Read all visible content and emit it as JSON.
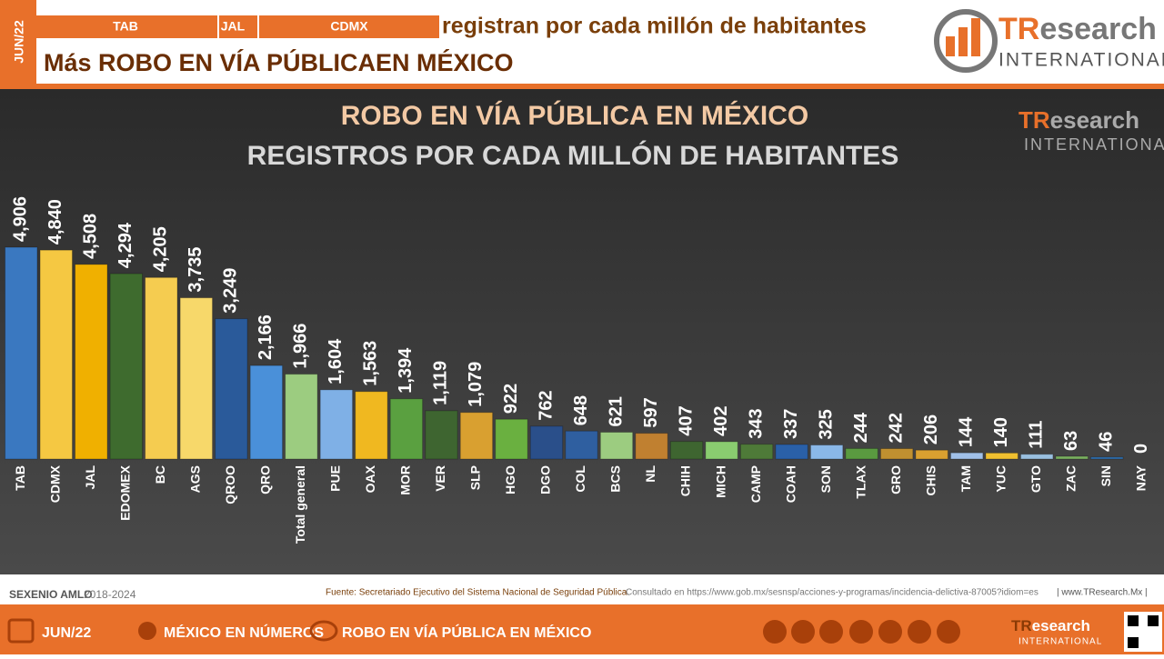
{
  "header": {
    "date": "JUN/22",
    "tabs": [
      "TAB",
      "JAL",
      "CDMX"
    ],
    "subtitle": "registran por cada millón de habitantes",
    "title": "Más ROBO EN VÍA PÚBLICAEN MÉXICO"
  },
  "logo": {
    "prefix": "TR",
    "suffix": "esearch",
    "tagline": "INTERNATIONAL"
  },
  "chart_data": {
    "type": "bar",
    "title": "ROBO EN VÍA PÚBLICA EN MÉXICO",
    "subtitle": "REGISTROS POR CADA MILLÓN DE HABITANTES",
    "categories": [
      "TAB",
      "CDMX",
      "JAL",
      "EDOMEX",
      "BC",
      "AGS",
      "QROO",
      "QRO",
      "Total general",
      "PUE",
      "OAX",
      "MOR",
      "VER",
      "SLP",
      "HGO",
      "DGO",
      "COL",
      "BCS",
      "NL",
      "CHIH",
      "MICH",
      "CAMP",
      "COAH",
      "SON",
      "TLAX",
      "GRO",
      "CHIS",
      "TAM",
      "YUC",
      "GTO",
      "ZAC",
      "SIN",
      "NAY"
    ],
    "values": [
      4906,
      4840,
      4508,
      4294,
      4205,
      3735,
      3249,
      2166,
      1966,
      1604,
      1563,
      1394,
      1119,
      1079,
      922,
      762,
      648,
      621,
      597,
      407,
      402,
      343,
      337,
      325,
      244,
      242,
      206,
      144,
      140,
      111,
      63,
      46,
      0
    ],
    "value_labels": [
      "4,906",
      "4,840",
      "4,508",
      "4,294",
      "4,205",
      "3,735",
      "3,249",
      "2,166",
      "1,966",
      "1,604",
      "1,563",
      "1,394",
      "1,119",
      "1,079",
      "922",
      "762",
      "648",
      "621",
      "597",
      "407",
      "402",
      "343",
      "337",
      "325",
      "244",
      "242",
      "206",
      "144",
      "140",
      "111",
      "63",
      "46",
      "0"
    ],
    "colors": [
      "#3a78c0",
      "#f5c842",
      "#f0b000",
      "#3e6b2e",
      "#f5cc50",
      "#f7d86a",
      "#2a5a9a",
      "#4a90d9",
      "#9ccc80",
      "#7fb0e6",
      "#f0b820",
      "#5aa040",
      "#3e6530",
      "#d9a030",
      "#6ab040",
      "#2a4f8a",
      "#2f5fa0",
      "#9ccc80",
      "#c08030",
      "#3e6530",
      "#8acc70",
      "#4e7a38",
      "#2a60a8",
      "#8ab8e8",
      "#5a9a40",
      "#c09030",
      "#d9a030",
      "#a0c0e8",
      "#f0c030",
      "#9ac0e0",
      "#7ab060",
      "#3070b0",
      "#888888"
    ]
  },
  "footer": {
    "period_label": "SEXENIO AMLO",
    "period": "2018-2024",
    "source": "Fuente: Secretariado Ejecutivo del Sistema Nacional de Seguridad Pública.",
    "consulted": "Consultado en https://www.gob.mx/sesnsp/acciones-y-programas/incidencia-delictiva-87005?idiom=es",
    "site": "| www.TResearch.Mx |"
  },
  "nav": {
    "date": "JUN/22",
    "section": "MÉXICO EN NÚMEROS",
    "topic": "ROBO EN VÍA PÚBLICA EN MÉXICO"
  }
}
